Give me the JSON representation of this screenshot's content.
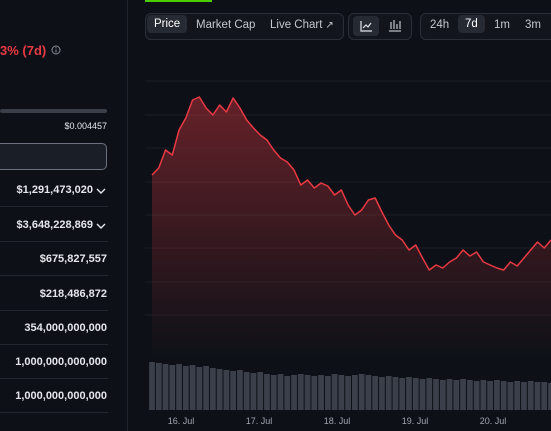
{
  "left_panel": {
    "change_text": "3% (7d)",
    "range_high": "$0.004457",
    "rows": [
      {
        "value": "$1,291,473,020",
        "dropdown": true
      },
      {
        "value": "$3,648,228,869",
        "dropdown": true
      },
      {
        "value": "$675,827,557",
        "dropdown": false
      },
      {
        "value": "$218,486,872",
        "dropdown": false
      },
      {
        "value": "354,000,000,000",
        "dropdown": false
      },
      {
        "value": "1,000,000,000,000",
        "dropdown": false
      },
      {
        "value": "1,000,000,000,000",
        "dropdown": false
      }
    ]
  },
  "tabs": {
    "views": [
      "Price",
      "Market Cap",
      "Live Chart"
    ],
    "active_view": 0,
    "ranges": [
      "24h",
      "7d",
      "1m",
      "3m"
    ],
    "active_range": 1
  },
  "chart_data": {
    "type": "line",
    "color": "#ea3943",
    "values": [
      155,
      162,
      180,
      175,
      200,
      212,
      230,
      233,
      222,
      215,
      225,
      218,
      232,
      222,
      210,
      202,
      195,
      190,
      180,
      172,
      168,
      160,
      145,
      150,
      142,
      147,
      144,
      135,
      140,
      125,
      115,
      120,
      130,
      132,
      118,
      105,
      95,
      90,
      80,
      85,
      72,
      60,
      65,
      62,
      68,
      72,
      80,
      74,
      78,
      68,
      65,
      62,
      60,
      68,
      64,
      72,
      80,
      88,
      82,
      90
    ],
    "ylim": [
      0,
      270
    ],
    "volume": [
      48,
      47,
      46,
      45,
      46,
      44,
      45,
      43,
      44,
      42,
      41,
      40,
      39,
      40,
      38,
      37,
      38,
      36,
      35,
      36,
      34,
      35,
      36,
      35,
      34,
      35,
      34,
      36,
      35,
      34,
      35,
      36,
      35,
      34,
      33,
      34,
      33,
      32,
      33,
      32,
      31,
      32,
      31,
      30,
      31,
      30,
      31,
      30,
      29,
      30,
      29,
      30,
      29,
      28,
      29,
      28,
      29,
      28,
      28,
      27
    ],
    "volume_lim": [
      0,
      60
    ],
    "x_labels": [
      "16. Jul",
      "17. Jul",
      "18. Jul",
      "19. Jul",
      "20. Jul"
    ]
  }
}
